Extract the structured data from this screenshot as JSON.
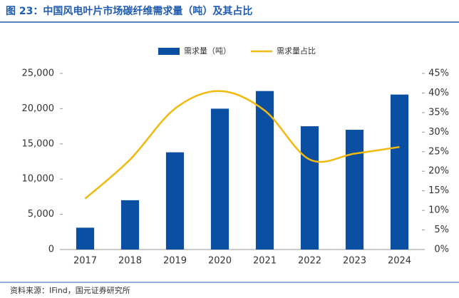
{
  "chart_data": {
    "type": "bar",
    "title": "图 23：中国风电叶片市场碳纤维需求量（吨）及其占比",
    "source": "资料来源：IFind，国元证券研究所",
    "categories": [
      "2017",
      "2018",
      "2019",
      "2020",
      "2021",
      "2022",
      "2023",
      "2024"
    ],
    "series": [
      {
        "name": "需求量（吨）",
        "type": "bar",
        "color": "#0b4fa3",
        "values": [
          3100,
          7000,
          13800,
          20000,
          22500,
          17500,
          17000,
          22000
        ]
      },
      {
        "name": "需求量占比",
        "type": "line",
        "axis": "y2",
        "color": "#f2b90f",
        "values": [
          13,
          23,
          36,
          40.5,
          35.5,
          23,
          24.5,
          26.2
        ]
      }
    ],
    "ylim": [
      0,
      25000
    ],
    "yticks": [
      0,
      {
        "value": 5000,
        "label": "5,000"
      },
      {
        "value": 10000,
        "label": "10,000"
      },
      {
        "value": 15000,
        "label": "15,000"
      },
      {
        "value": 20000,
        "label": "20,000"
      },
      {
        "value": 25000,
        "label": "25,000"
      }
    ],
    "y2lim": [
      0,
      45
    ],
    "y2ticks": [
      {
        "value": 0,
        "label": "0%"
      },
      {
        "value": 5,
        "label": "5%"
      },
      {
        "value": 10,
        "label": "10%"
      },
      {
        "value": 15,
        "label": "15%"
      },
      {
        "value": 20,
        "label": "20%"
      },
      {
        "value": 25,
        "label": "25%"
      },
      {
        "value": 30,
        "label": "30%"
      },
      {
        "value": 35,
        "label": "35%"
      },
      {
        "value": 40,
        "label": "40%"
      },
      {
        "value": 45,
        "label": "45%"
      }
    ],
    "grid": false,
    "legend": "top"
  }
}
